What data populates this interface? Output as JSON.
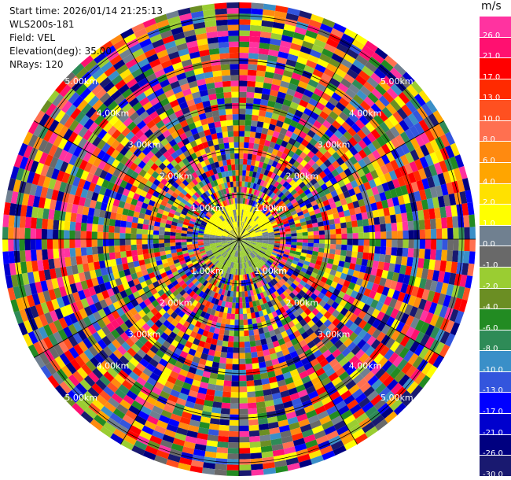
{
  "info": {
    "start_time": "Start time: 2026/01/14 21:25:13",
    "instrument": "WLS200s-181",
    "field": "Field: VEL",
    "elevation": "Elevation(deg): 35.00",
    "nrays": "NRays: 120"
  },
  "colorbar": {
    "unit": "m/s",
    "levels": [
      {
        "label": "26.0",
        "color": "#ff33a0"
      },
      {
        "label": "21.0",
        "color": "#ff1070"
      },
      {
        "label": "17.0",
        "color": "#ff0000"
      },
      {
        "label": "13.0",
        "color": "#ff2a00"
      },
      {
        "label": "10.0",
        "color": "#ff5020"
      },
      {
        "label": "8.0",
        "color": "#ff7050"
      },
      {
        "label": "6.0",
        "color": "#ff8a10"
      },
      {
        "label": "4.0",
        "color": "#ffa500"
      },
      {
        "label": "2.0",
        "color": "#ffe100"
      },
      {
        "label": "1.0",
        "color": "#ffff00"
      },
      {
        "label": "0.0",
        "color": "#708090"
      },
      {
        "label": "-1.0",
        "color": "#696969"
      },
      {
        "label": "-2.0",
        "color": "#9acd32"
      },
      {
        "label": "-4.0",
        "color": "#6b8e23"
      },
      {
        "label": "-6.0",
        "color": "#228b22"
      },
      {
        "label": "-8.0",
        "color": "#2e8b57"
      },
      {
        "label": "-10.0",
        "color": "#3a8fc8"
      },
      {
        "label": "-13.0",
        "color": "#3355dd"
      },
      {
        "label": "-17.0",
        "color": "#0000ff"
      },
      {
        "label": "-21.0",
        "color": "#0000cd"
      },
      {
        "label": "-26.0",
        "color": "#000080"
      },
      {
        "label": "-30.0",
        "color": "#191970"
      }
    ]
  },
  "chart_data": {
    "type": "heatmap",
    "projection": "polar-ppi",
    "field": "VEL",
    "units": "m/s",
    "elevation_deg": 35.0,
    "nrays": 120,
    "range_ring_labels": [
      "1.00km",
      "2.00km",
      "3.00km",
      "4.00km",
      "5.00km"
    ],
    "range_ring_km": [
      1,
      2,
      3,
      4,
      5
    ],
    "max_range_km": 5.3,
    "inner_region_km": 0.8,
    "ring_label_azimuths_deg": [
      45,
      135,
      225,
      315
    ],
    "grid": true
  }
}
